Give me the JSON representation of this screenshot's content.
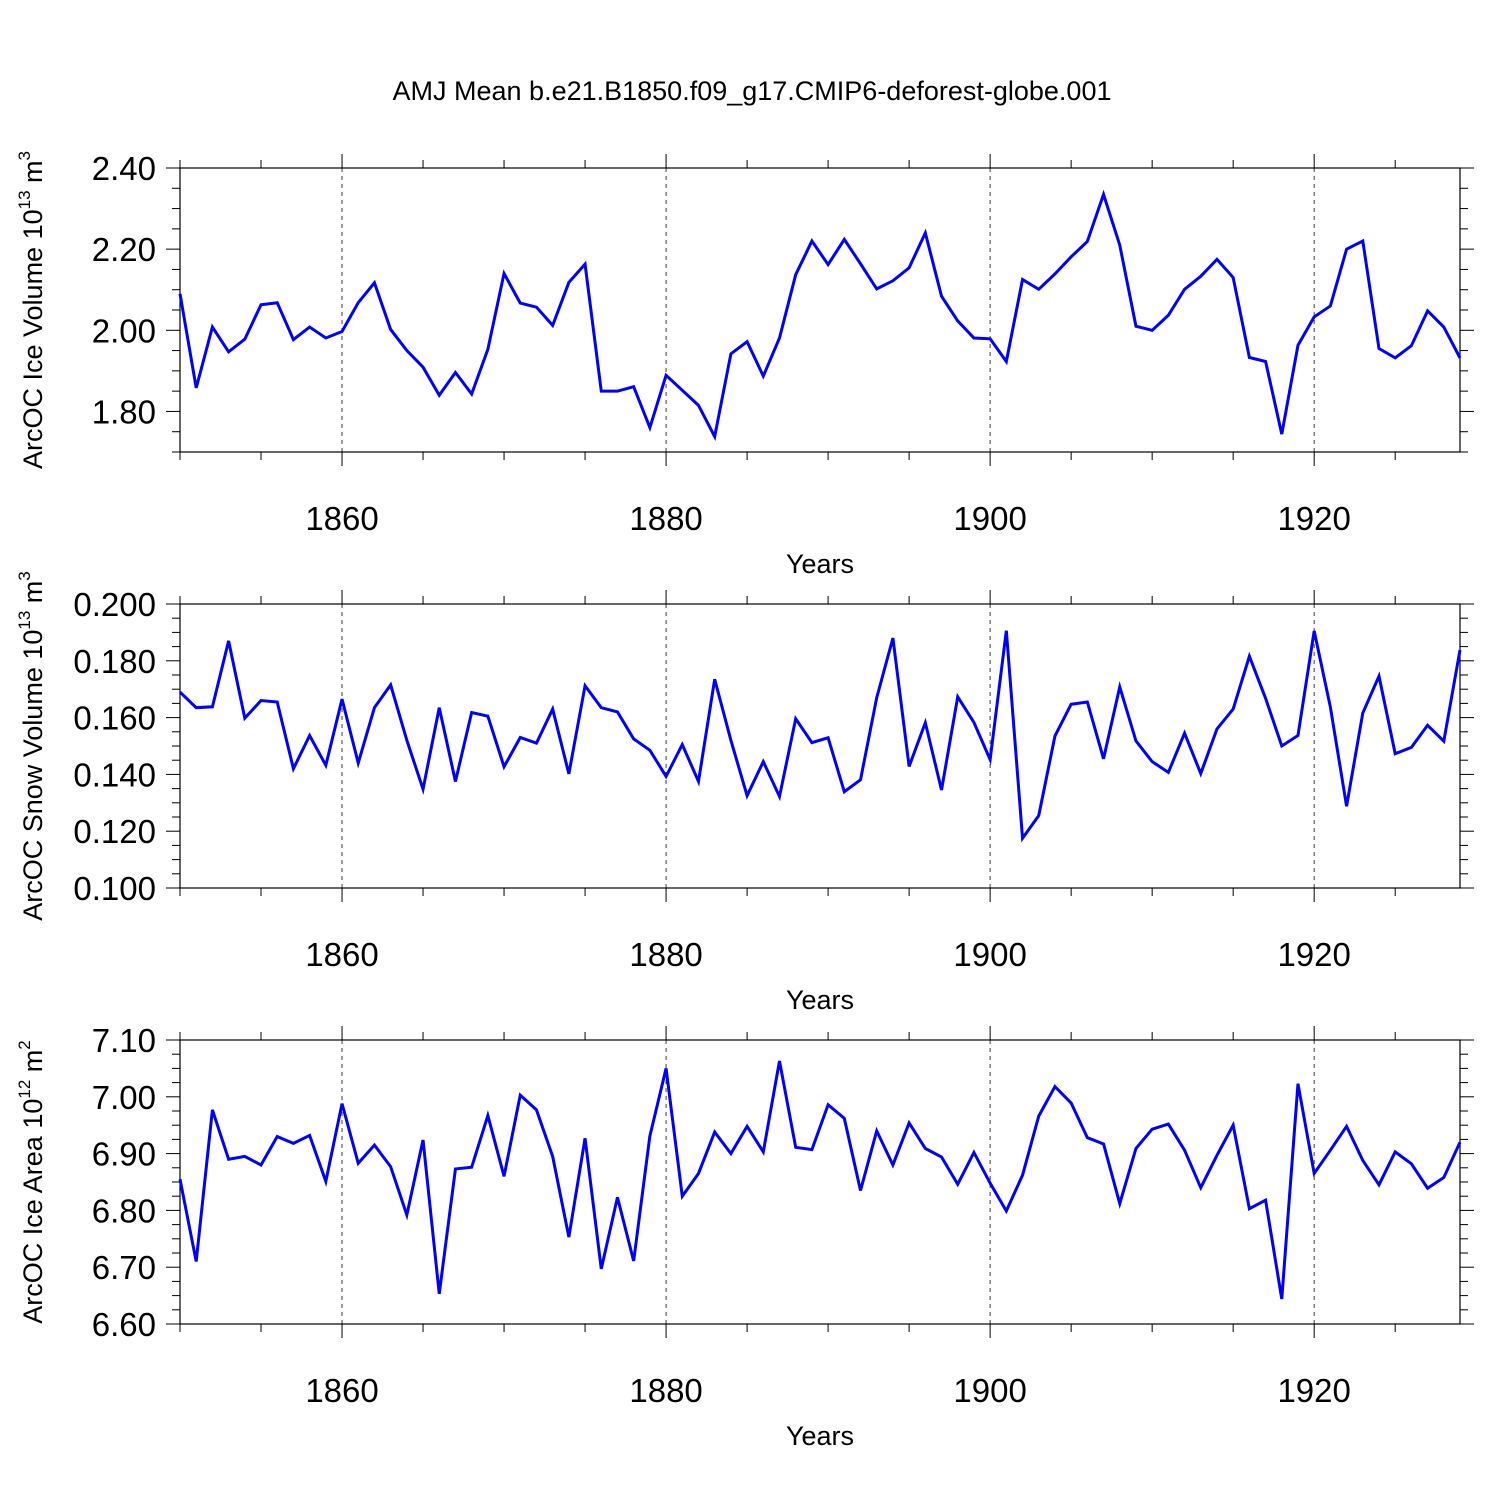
{
  "title": "AMJ Mean b.e21.B1850.f09_g17.CMIP6-deforest-globe.001",
  "colors": {
    "line": "#0000ff",
    "axis": "#000000",
    "grid": "#000000"
  },
  "chart_data": [
    {
      "type": "line",
      "name": "ice-volume",
      "ylabel": {
        "prefix": "ArcOC Ice Volume 10",
        "exp": "13",
        "unit": " m",
        "unit_exp": "3"
      },
      "xlabel": "Years",
      "xlim": [
        1850,
        1929
      ],
      "ylim": [
        1.7,
        2.4
      ],
      "yticks": [
        1.8,
        2.0,
        2.2,
        2.4
      ],
      "ytick_labels": [
        "1.80",
        "2.00",
        "2.20",
        "2.40"
      ],
      "yminor_step": 0.05,
      "xticks": [
        1860,
        1880,
        1900,
        1920
      ],
      "xtick_labels": [
        "1860",
        "1880",
        "1900",
        "1920"
      ],
      "xminor_step": 5,
      "grid": "dashed-vertical-at-major-x",
      "x_start": 1850,
      "values": [
        2.09,
        1.858,
        2.008,
        1.947,
        1.978,
        2.063,
        2.068,
        1.977,
        2.008,
        1.981,
        1.997,
        2.068,
        2.117,
        2.002,
        1.95,
        1.909,
        1.84,
        1.896,
        1.843,
        1.953,
        2.14,
        2.067,
        2.057,
        2.012,
        2.118,
        2.163,
        1.85,
        1.85,
        1.861,
        1.76,
        1.889,
        1.852,
        1.815,
        1.738,
        1.942,
        1.972,
        1.887,
        1.981,
        2.137,
        2.22,
        2.162,
        2.224,
        2.164,
        2.102,
        2.122,
        2.154,
        2.24,
        2.084,
        2.023,
        1.981,
        1.979,
        1.923,
        2.125,
        2.101,
        2.139,
        2.181,
        2.219,
        2.335,
        2.21,
        2.01,
        2.0,
        2.037,
        2.101,
        2.133,
        2.175,
        2.13,
        1.933,
        1.923,
        1.744,
        1.963,
        2.033,
        2.06,
        2.2,
        2.22,
        1.955,
        1.932,
        1.962,
        2.048,
        2.008,
        1.932
      ]
    },
    {
      "type": "line",
      "name": "snow-volume",
      "ylabel": {
        "prefix": "ArcOC Snow Volume 10",
        "exp": "13",
        "unit": " m",
        "unit_exp": "3"
      },
      "xlabel": "Years",
      "xlim": [
        1850,
        1929
      ],
      "ylim": [
        0.1,
        0.2
      ],
      "yticks": [
        0.1,
        0.12,
        0.14,
        0.16,
        0.18,
        0.2
      ],
      "ytick_labels": [
        "0.100",
        "0.120",
        "0.140",
        "0.160",
        "0.180",
        "0.200"
      ],
      "yminor_step": 0.005,
      "xticks": [
        1860,
        1880,
        1900,
        1920
      ],
      "xtick_labels": [
        "1860",
        "1880",
        "1900",
        "1920"
      ],
      "xminor_step": 5,
      "grid": "dashed-vertical-at-major-x",
      "x_start": 1850,
      "values": [
        0.169,
        0.1635,
        0.1638,
        0.187,
        0.1598,
        0.166,
        0.1655,
        0.142,
        0.1537,
        0.1432,
        0.1665,
        0.144,
        0.1635,
        0.1715,
        0.152,
        0.1348,
        0.1635,
        0.1375,
        0.1618,
        0.1605,
        0.1427,
        0.153,
        0.151,
        0.163,
        0.1402,
        0.1712,
        0.1635,
        0.162,
        0.1525,
        0.1485,
        0.1393,
        0.1505,
        0.1375,
        0.1735,
        0.152,
        0.1325,
        0.1445,
        0.1322,
        0.1596,
        0.1512,
        0.1529,
        0.1339,
        0.1381,
        0.167,
        0.188,
        0.1428,
        0.1582,
        0.1345,
        0.1673,
        0.1583,
        0.1452,
        0.1906,
        0.1175,
        0.1255,
        0.1535,
        0.1647,
        0.1655,
        0.1455,
        0.1708,
        0.1518,
        0.1445,
        0.1407,
        0.1545,
        0.1403,
        0.156,
        0.163,
        0.1816,
        0.1668,
        0.15,
        0.1537,
        0.1905,
        0.1637,
        0.1288,
        0.1616,
        0.1746,
        0.1473,
        0.1495,
        0.1573,
        0.1517,
        0.1838
      ]
    },
    {
      "type": "line",
      "name": "ice-area",
      "ylabel": {
        "prefix": "ArcOC Ice Area 10",
        "exp": "12",
        "unit": " m",
        "unit_exp": "2"
      },
      "xlabel": "Years",
      "xlim": [
        1850,
        1929
      ],
      "ylim": [
        6.6,
        7.1
      ],
      "yticks": [
        6.6,
        6.7,
        6.8,
        6.9,
        7.0,
        7.1
      ],
      "ytick_labels": [
        "6.60",
        "6.70",
        "6.80",
        "6.90",
        "7.00",
        "7.10"
      ],
      "yminor_step": 0.025,
      "xticks": [
        1860,
        1880,
        1900,
        1920
      ],
      "xtick_labels": [
        "1860",
        "1880",
        "1900",
        "1920"
      ],
      "xminor_step": 5,
      "grid": "dashed-vertical-at-major-x",
      "x_start": 1850,
      "values": [
        6.855,
        6.71,
        6.977,
        6.89,
        6.895,
        6.88,
        6.93,
        6.918,
        6.932,
        6.851,
        6.988,
        6.883,
        6.915,
        6.877,
        6.792,
        6.924,
        6.653,
        6.873,
        6.876,
        6.967,
        6.86,
        7.003,
        6.977,
        6.895,
        6.753,
        6.927,
        6.697,
        6.823,
        6.711,
        6.931,
        7.05,
        6.825,
        6.865,
        6.938,
        6.9,
        6.948,
        6.903,
        7.063,
        6.911,
        6.907,
        6.986,
        6.962,
        6.835,
        6.94,
        6.88,
        6.954,
        6.909,
        6.894,
        6.846,
        6.902,
        6.848,
        6.799,
        6.862,
        6.966,
        7.018,
        6.989,
        6.928,
        6.917,
        6.812,
        6.909,
        6.943,
        6.952,
        6.906,
        6.84,
        6.897,
        6.95,
        6.803,
        6.818,
        6.644,
        7.023,
        6.865,
        6.906,
        6.948,
        6.888,
        6.845,
        6.903,
        6.882,
        6.839,
        6.858,
        6.92
      ]
    }
  ]
}
